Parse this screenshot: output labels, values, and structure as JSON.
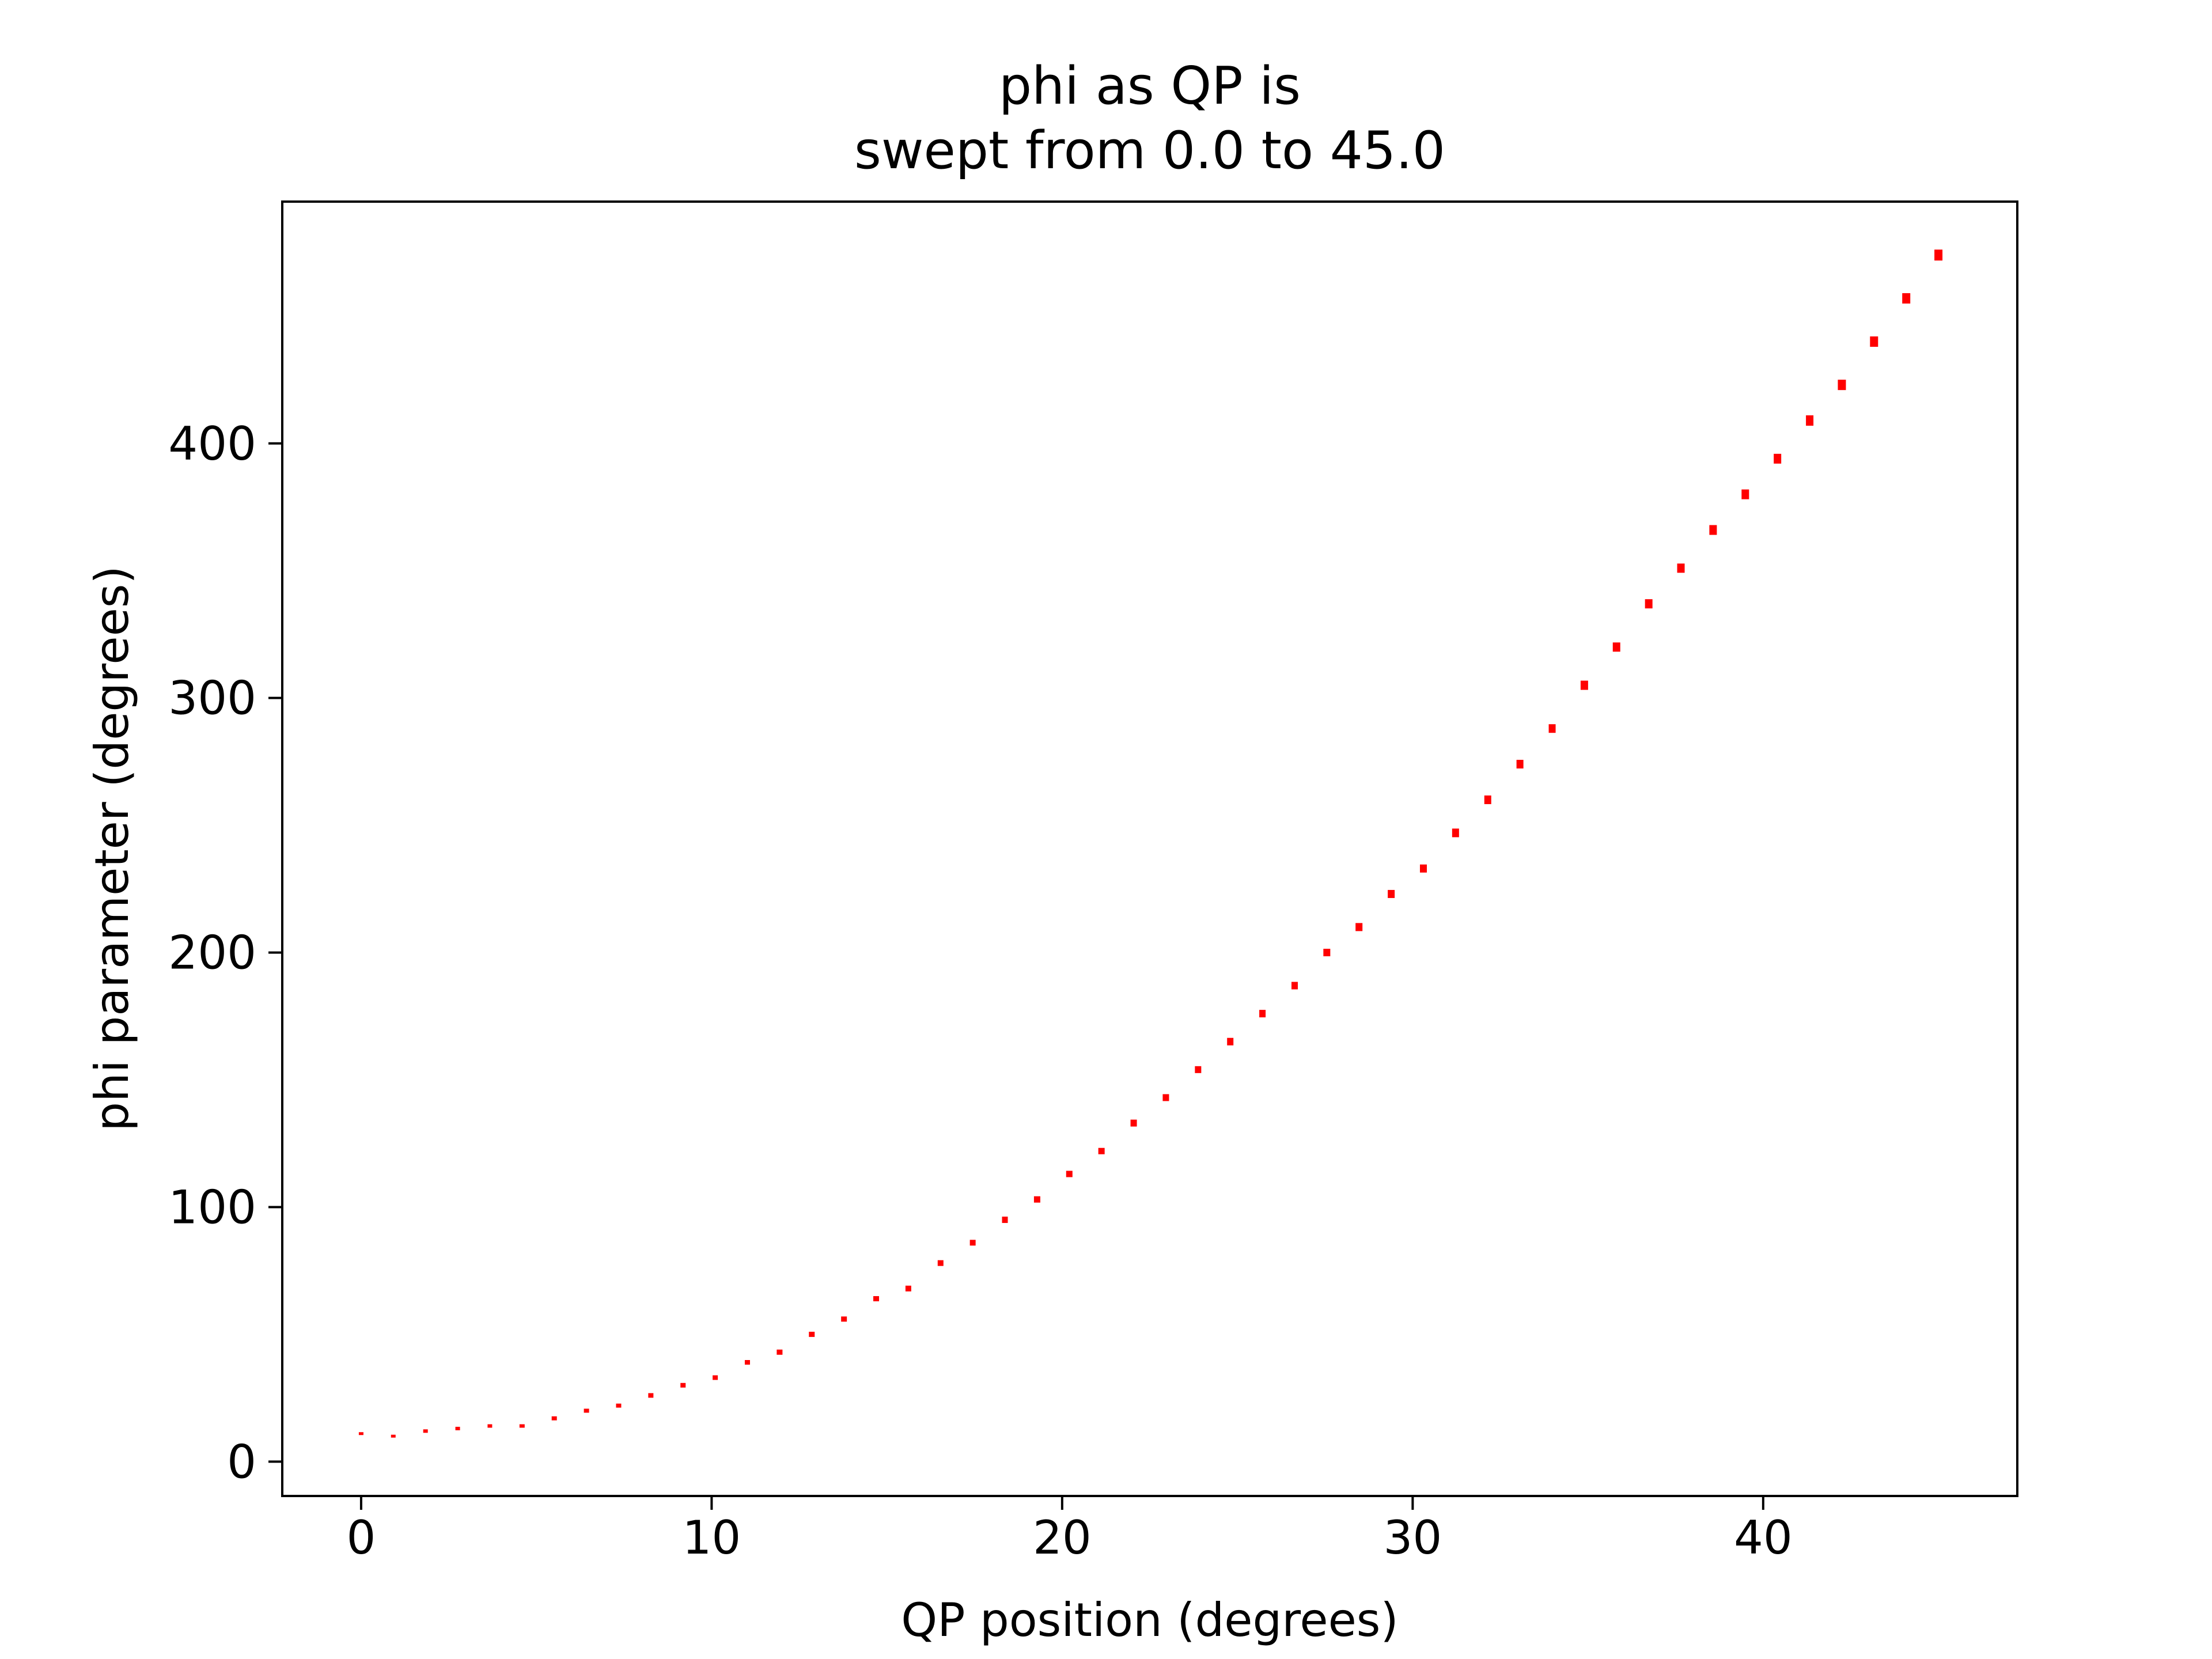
{
  "chart_data": {
    "type": "scatter",
    "title_lines": [
      "phi as QP is",
      "swept from 0.0 to 45.0"
    ],
    "xlabel": "QP position (degrees)",
    "ylabel": "phi parameter (degrees)",
    "xlim": [
      -2.25,
      47.25
    ],
    "ylim": [
      -13.5,
      495
    ],
    "x_ticks": [
      0,
      10,
      20,
      30,
      40
    ],
    "y_ticks": [
      0,
      100,
      200,
      300,
      400
    ],
    "x_tick_labels": [
      "0",
      "10",
      "20",
      "30",
      "40"
    ],
    "y_tick_labels": [
      "0",
      "100",
      "200",
      "300",
      "400"
    ],
    "grid": false,
    "legend": "none",
    "marker_color": "#ff0000",
    "series": [
      {
        "x": [
          0.0,
          0.918,
          1.837,
          2.755,
          3.673,
          4.592,
          5.51,
          6.429,
          7.347,
          8.265,
          9.184,
          10.102,
          11.02,
          11.939,
          12.857,
          13.776,
          14.694,
          15.612,
          16.531,
          17.449,
          18.367,
          19.286,
          20.204,
          21.122,
          22.041,
          22.959,
          23.878,
          24.796,
          25.714,
          26.633,
          27.551,
          28.469,
          29.388,
          30.306,
          31.224,
          32.143,
          33.061,
          33.98,
          34.898,
          35.816,
          36.735,
          37.653,
          38.571,
          39.49,
          40.408,
          41.327,
          42.245,
          43.163,
          44.082,
          45.0
        ],
        "y": [
          11,
          10,
          12,
          13,
          14,
          14,
          17,
          20,
          22,
          26,
          30,
          33,
          39,
          43,
          50,
          56,
          64,
          68,
          78,
          86,
          95,
          103,
          113,
          122,
          133,
          143,
          154,
          165,
          176,
          187,
          200,
          210,
          223,
          233,
          247,
          260,
          274,
          288,
          305,
          320,
          337,
          351,
          366,
          380,
          394,
          409,
          423,
          440,
          457,
          474
        ]
      }
    ]
  }
}
